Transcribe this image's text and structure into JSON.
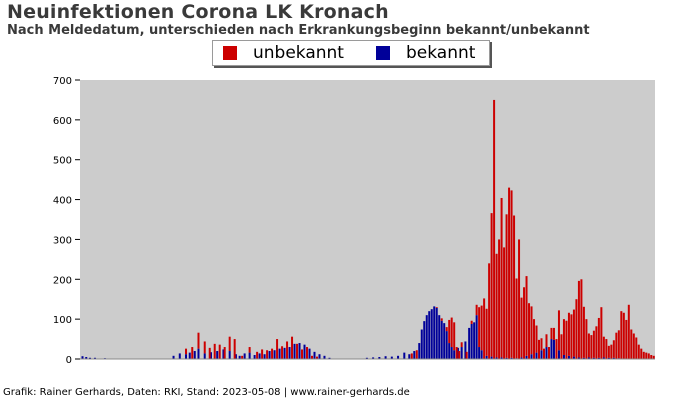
{
  "chart_data": {
    "type": "bar",
    "stacked": true,
    "title": "Neuinfektionen Corona LK Kronach",
    "subtitle": "Nach Meldedatum, unterschieden nach Erkrankungsbeginn bekannt/unbekannt",
    "ylim": [
      0,
      700
    ],
    "yticks": [
      0,
      100,
      200,
      300,
      400,
      500,
      600,
      700
    ],
    "grid": false,
    "legend_position": "top-center",
    "background": "#cccccc",
    "colors": {
      "unbekannt": "#cc0000",
      "bekannt": "#000099"
    },
    "x_index_range": [
      0,
      460
    ],
    "x_tick_labels_note": "",
    "series": [
      {
        "name": "bekannt",
        "color": "#000099",
        "points": [
          [
            2,
            7
          ],
          [
            5,
            5
          ],
          [
            8,
            3
          ],
          [
            12,
            3
          ],
          [
            20,
            2
          ],
          [
            30,
            1
          ],
          [
            75,
            8
          ],
          [
            80,
            14
          ],
          [
            85,
            12
          ],
          [
            88,
            16
          ],
          [
            92,
            20
          ],
          [
            95,
            26
          ],
          [
            100,
            14
          ],
          [
            105,
            17
          ],
          [
            110,
            20
          ],
          [
            115,
            24
          ],
          [
            120,
            20
          ],
          [
            125,
            12
          ],
          [
            128,
            8
          ],
          [
            132,
            14
          ],
          [
            136,
            16
          ],
          [
            140,
            10
          ],
          [
            144,
            14
          ],
          [
            148,
            12
          ],
          [
            152,
            20
          ],
          [
            156,
            22
          ],
          [
            160,
            26
          ],
          [
            164,
            28
          ],
          [
            168,
            30
          ],
          [
            172,
            38
          ],
          [
            176,
            40
          ],
          [
            180,
            36
          ],
          [
            184,
            26
          ],
          [
            188,
            18
          ],
          [
            192,
            12
          ],
          [
            196,
            8
          ],
          [
            200,
            3
          ],
          [
            210,
            1
          ],
          [
            230,
            3
          ],
          [
            235,
            4
          ],
          [
            240,
            5
          ],
          [
            245,
            7
          ],
          [
            250,
            6
          ],
          [
            255,
            8
          ],
          [
            260,
            16
          ],
          [
            264,
            12
          ],
          [
            268,
            20
          ],
          [
            272,
            40
          ],
          [
            274,
            74
          ],
          [
            276,
            95
          ],
          [
            278,
            110
          ],
          [
            280,
            120
          ],
          [
            282,
            125
          ],
          [
            284,
            132
          ],
          [
            286,
            128
          ],
          [
            288,
            110
          ],
          [
            290,
            96
          ],
          [
            292,
            90
          ],
          [
            294,
            70
          ],
          [
            296,
            40
          ],
          [
            298,
            30
          ],
          [
            300,
            22
          ],
          [
            303,
            28
          ],
          [
            306,
            30
          ],
          [
            309,
            44
          ],
          [
            312,
            78
          ],
          [
            314,
            88
          ],
          [
            316,
            92
          ],
          [
            318,
            110
          ],
          [
            320,
            30
          ],
          [
            322,
            22
          ],
          [
            326,
            8
          ],
          [
            330,
            6
          ],
          [
            334,
            4
          ],
          [
            338,
            4
          ],
          [
            342,
            3
          ],
          [
            346,
            3
          ],
          [
            350,
            2
          ],
          [
            354,
            4
          ],
          [
            358,
            8
          ],
          [
            362,
            12
          ],
          [
            366,
            16
          ],
          [
            370,
            22
          ],
          [
            374,
            30
          ],
          [
            378,
            50
          ],
          [
            380,
            48
          ],
          [
            384,
            22
          ],
          [
            388,
            10
          ],
          [
            392,
            8
          ],
          [
            396,
            6
          ],
          [
            400,
            4
          ],
          [
            404,
            3
          ],
          [
            408,
            4
          ],
          [
            412,
            3
          ],
          [
            416,
            3
          ],
          [
            420,
            4
          ],
          [
            424,
            3
          ],
          [
            428,
            3
          ],
          [
            432,
            2
          ]
        ]
      },
      {
        "name": "unbekannt",
        "color": "#cc0000",
        "points": [
          [
            85,
            14
          ],
          [
            90,
            30
          ],
          [
            95,
            40
          ],
          [
            100,
            30
          ],
          [
            104,
            28
          ],
          [
            108,
            38
          ],
          [
            112,
            36
          ],
          [
            116,
            30
          ],
          [
            120,
            36
          ],
          [
            124,
            50
          ],
          [
            130,
            8
          ],
          [
            136,
            14
          ],
          [
            142,
            18
          ],
          [
            146,
            24
          ],
          [
            150,
            22
          ],
          [
            154,
            26
          ],
          [
            158,
            50
          ],
          [
            162,
            32
          ],
          [
            166,
            44
          ],
          [
            170,
            56
          ],
          [
            174,
            38
          ],
          [
            178,
            24
          ],
          [
            182,
            30
          ],
          [
            186,
            8
          ],
          [
            190,
            6
          ],
          [
            266,
            14
          ],
          [
            270,
            22
          ],
          [
            286,
            2
          ],
          [
            290,
            6
          ],
          [
            294,
            10
          ],
          [
            296,
            58
          ],
          [
            298,
            74
          ],
          [
            300,
            70
          ],
          [
            302,
            30
          ],
          [
            304,
            20
          ],
          [
            306,
            12
          ],
          [
            310,
            18
          ],
          [
            314,
            8
          ],
          [
            318,
            26
          ],
          [
            320,
            100
          ],
          [
            322,
            112
          ],
          [
            324,
            152
          ],
          [
            326,
            118
          ],
          [
            328,
            240
          ],
          [
            330,
            360
          ],
          [
            332,
            650
          ],
          [
            334,
            260
          ],
          [
            336,
            300
          ],
          [
            338,
            400
          ],
          [
            340,
            280
          ],
          [
            342,
            360
          ],
          [
            344,
            430
          ],
          [
            346,
            420
          ],
          [
            348,
            360
          ],
          [
            350,
            200
          ],
          [
            352,
            300
          ],
          [
            354,
            150
          ],
          [
            356,
            180
          ],
          [
            358,
            200
          ],
          [
            360,
            140
          ],
          [
            362,
            120
          ],
          [
            364,
            100
          ],
          [
            366,
            68
          ],
          [
            368,
            48
          ],
          [
            370,
            30
          ],
          [
            372,
            26
          ],
          [
            374,
            32
          ],
          [
            376,
            30
          ],
          [
            378,
            28
          ],
          [
            380,
            30
          ],
          [
            382,
            50
          ],
          [
            384,
            100
          ],
          [
            386,
            62
          ],
          [
            388,
            90
          ],
          [
            390,
            96
          ],
          [
            392,
            108
          ],
          [
            394,
            112
          ],
          [
            396,
            118
          ],
          [
            398,
            150
          ],
          [
            400,
            192
          ],
          [
            402,
            200
          ],
          [
            404,
            128
          ],
          [
            406,
            100
          ],
          [
            408,
            60
          ],
          [
            410,
            60
          ],
          [
            412,
            68
          ],
          [
            414,
            82
          ],
          [
            416,
            100
          ],
          [
            418,
            130
          ],
          [
            420,
            52
          ],
          [
            422,
            50
          ],
          [
            424,
            30
          ],
          [
            426,
            36
          ],
          [
            428,
            44
          ],
          [
            430,
            66
          ],
          [
            432,
            70
          ],
          [
            434,
            120
          ],
          [
            436,
            116
          ],
          [
            438,
            98
          ],
          [
            440,
            136
          ],
          [
            442,
            74
          ],
          [
            444,
            64
          ],
          [
            446,
            54
          ],
          [
            448,
            36
          ],
          [
            450,
            26
          ],
          [
            452,
            18
          ],
          [
            454,
            16
          ],
          [
            456,
            14
          ],
          [
            458,
            10
          ],
          [
            460,
            8
          ]
        ]
      }
    ]
  },
  "footer": "Grafik: Rainer Gerhards, Daten: RKI, Stand: 2023-05-08 | www.rainer-gerhards.de"
}
